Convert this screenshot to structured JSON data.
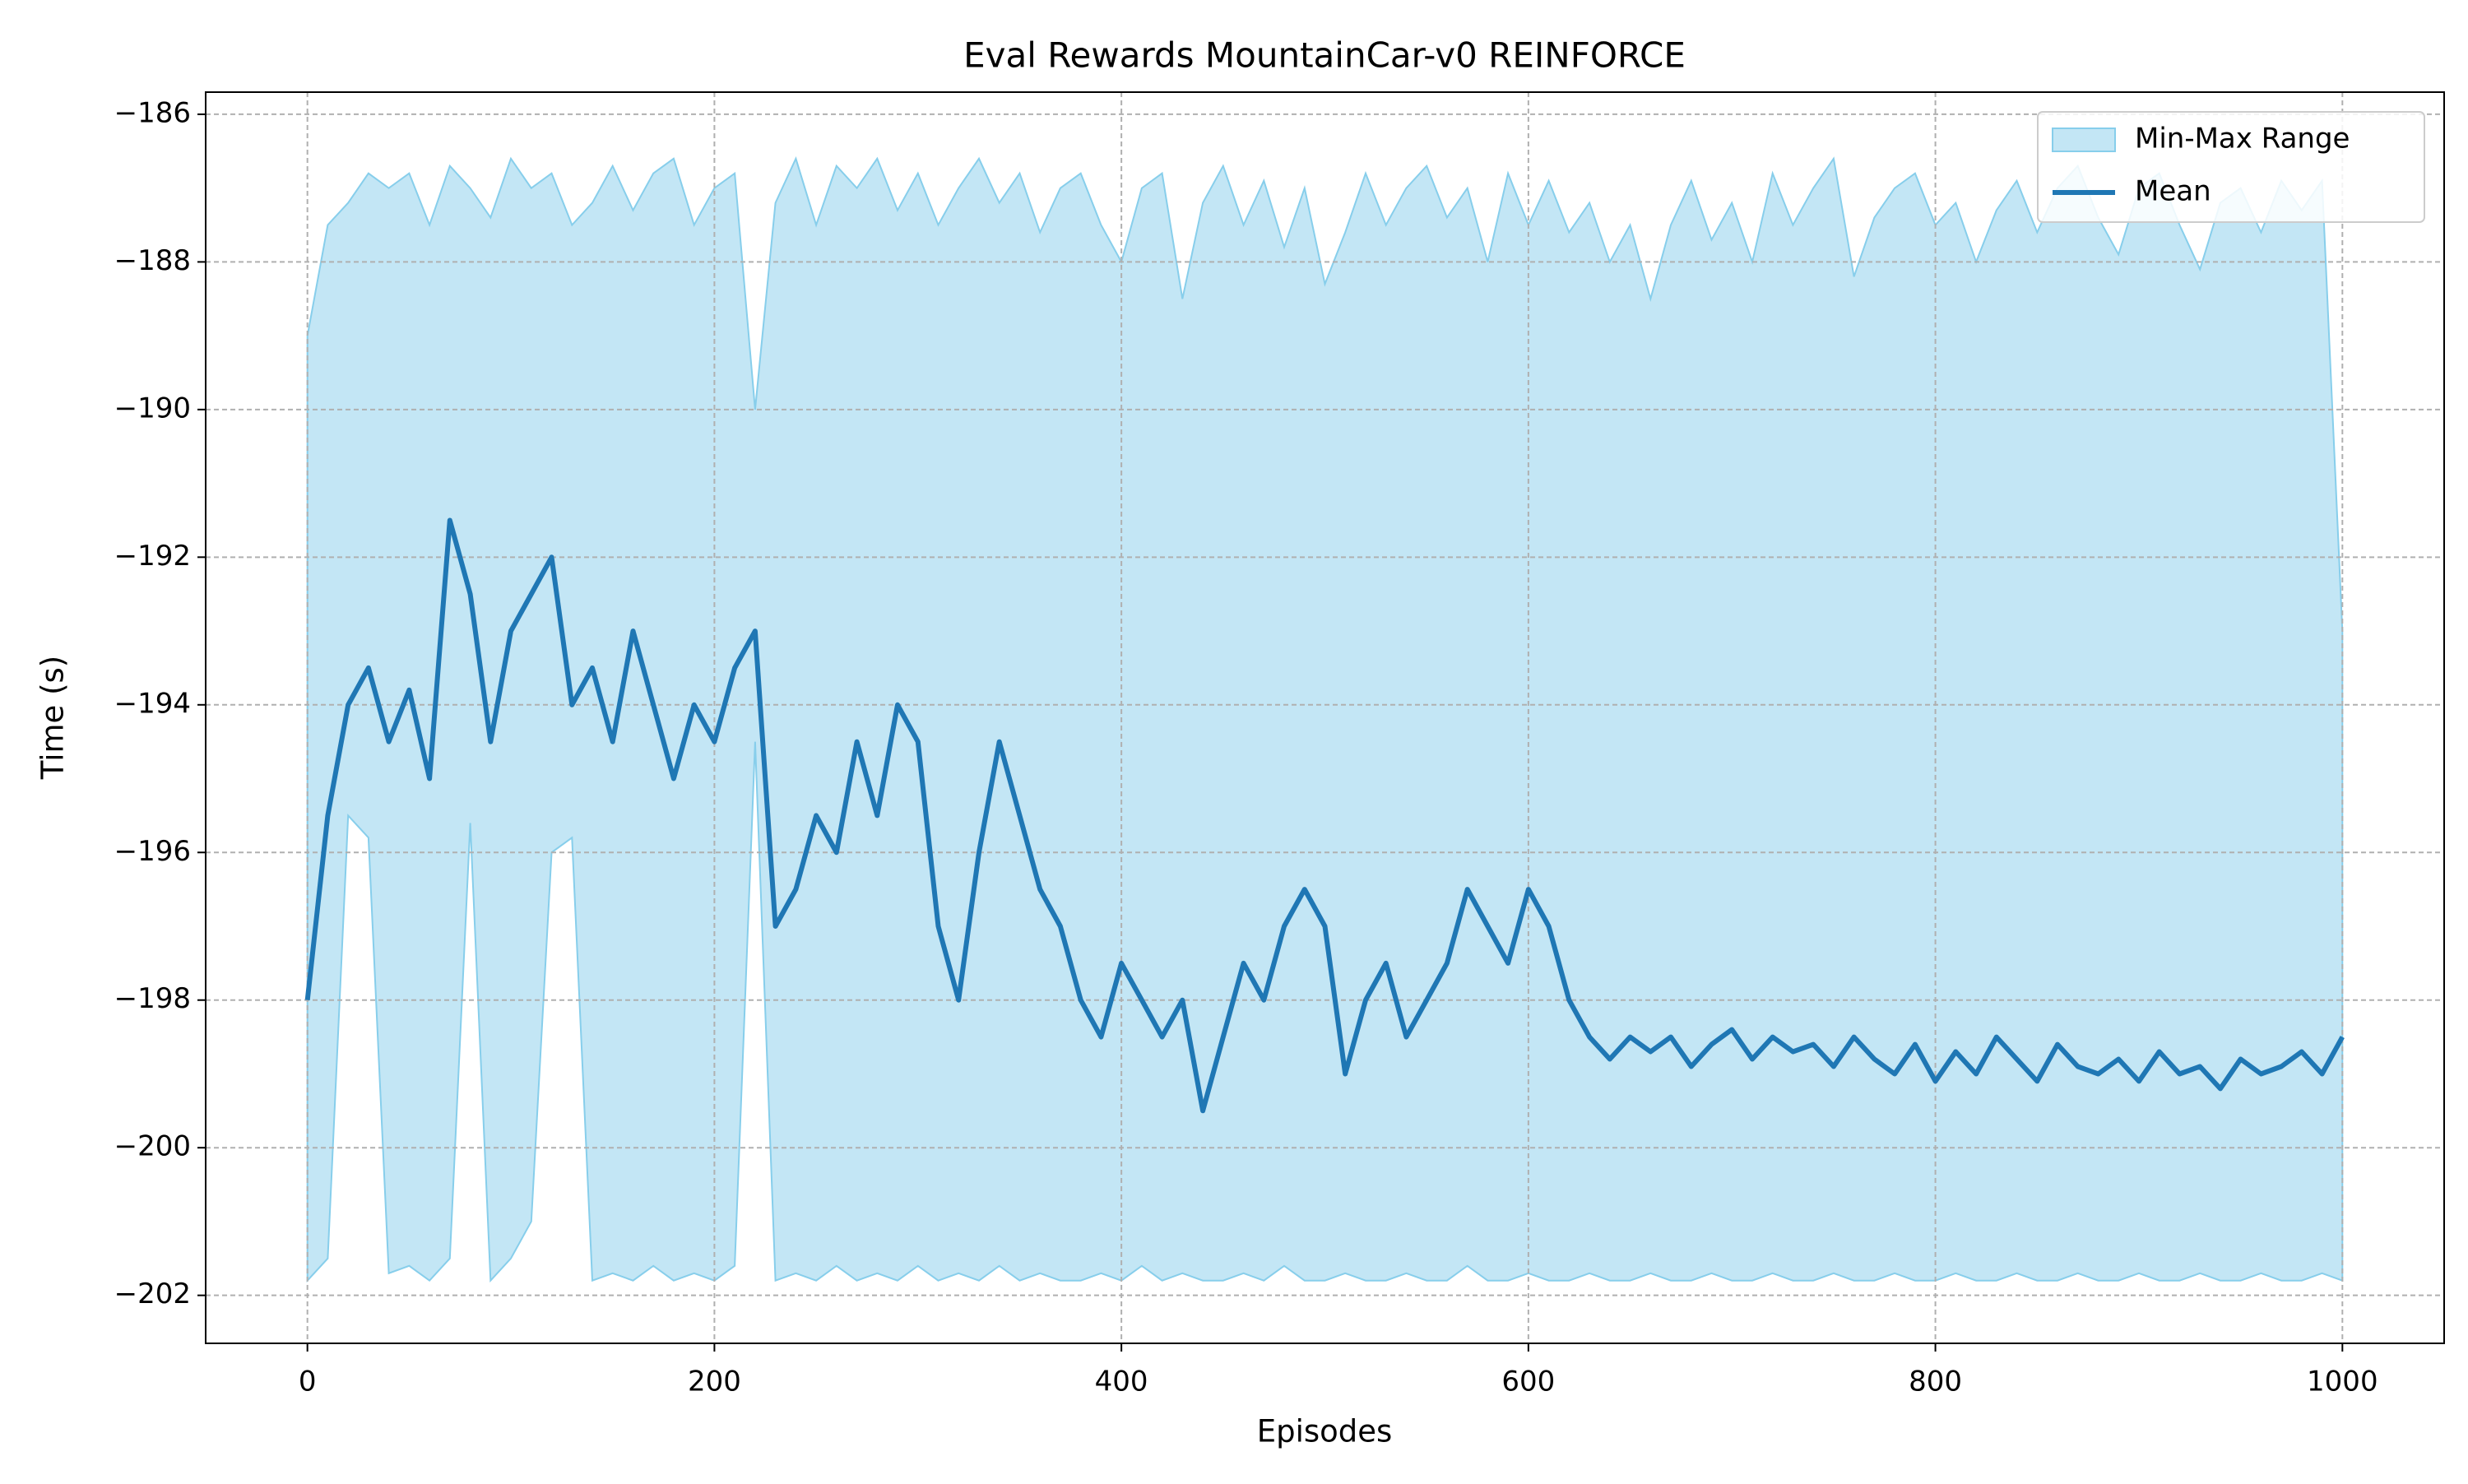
{
  "chart_data": {
    "type": "line",
    "title": "Eval Rewards MountainCar-v0 REINFORCE",
    "xlabel": "Episodes",
    "ylabel": "Time (s)",
    "x": [
      0,
      10,
      20,
      30,
      40,
      50,
      60,
      70,
      80,
      90,
      100,
      110,
      120,
      130,
      140,
      150,
      160,
      170,
      180,
      190,
      200,
      210,
      220,
      230,
      240,
      250,
      260,
      270,
      280,
      290,
      300,
      310,
      320,
      330,
      340,
      350,
      360,
      370,
      380,
      390,
      400,
      410,
      420,
      430,
      440,
      450,
      460,
      470,
      480,
      490,
      500,
      510,
      520,
      530,
      540,
      550,
      560,
      570,
      580,
      590,
      600,
      610,
      620,
      630,
      640,
      650,
      660,
      670,
      680,
      690,
      700,
      710,
      720,
      730,
      740,
      750,
      760,
      770,
      780,
      790,
      800,
      810,
      820,
      830,
      840,
      850,
      860,
      870,
      880,
      890,
      900,
      910,
      920,
      930,
      940,
      950,
      960,
      970,
      980,
      990,
      1000
    ],
    "series": [
      {
        "name": "Min-Max Range",
        "type": "area",
        "color": "#87ceeb",
        "upper": [
          -189,
          -187.5,
          -187.2,
          -186.8,
          -187,
          -186.8,
          -187.5,
          -186.7,
          -187,
          -187.4,
          -186.6,
          -187,
          -186.8,
          -187.5,
          -187.2,
          -186.7,
          -187.3,
          -186.8,
          -186.6,
          -187.5,
          -187,
          -186.8,
          -190,
          -187.2,
          -186.6,
          -187.5,
          -186.7,
          -187,
          -186.6,
          -187.3,
          -186.8,
          -187.5,
          -187,
          -186.6,
          -187.2,
          -186.8,
          -187.6,
          -187,
          -186.8,
          -187.5,
          -188,
          -187,
          -186.8,
          -188.5,
          -187.2,
          -186.7,
          -187.5,
          -186.9,
          -187.8,
          -187,
          -188.3,
          -187.6,
          -186.8,
          -187.5,
          -187,
          -186.7,
          -187.4,
          -187,
          -188,
          -186.8,
          -187.5,
          -186.9,
          -187.6,
          -187.2,
          -188,
          -187.5,
          -188.5,
          -187.5,
          -186.9,
          -187.7,
          -187.2,
          -188,
          -186.8,
          -187.5,
          -187,
          -186.6,
          -188.2,
          -187.4,
          -187,
          -186.8,
          -187.5,
          -187.2,
          -188,
          -187.3,
          -186.9,
          -187.6,
          -187,
          -186.7,
          -187.4,
          -187.9,
          -187,
          -186.8,
          -187.5,
          -188.1,
          -187.2,
          -187,
          -187.6,
          -186.9,
          -187.3,
          -186.9,
          -193
        ],
        "lower": [
          -201.8,
          -201.5,
          -195.5,
          -195.8,
          -201.7,
          -201.6,
          -201.8,
          -201.5,
          -195.6,
          -201.8,
          -201.5,
          -201,
          -196,
          -195.8,
          -201.8,
          -201.7,
          -201.8,
          -201.6,
          -201.8,
          -201.7,
          -201.8,
          -201.6,
          -194.5,
          -201.8,
          -201.7,
          -201.8,
          -201.6,
          -201.8,
          -201.7,
          -201.8,
          -201.6,
          -201.8,
          -201.7,
          -201.8,
          -201.6,
          -201.8,
          -201.7,
          -201.8,
          -201.8,
          -201.7,
          -201.8,
          -201.6,
          -201.8,
          -201.7,
          -201.8,
          -201.8,
          -201.7,
          -201.8,
          -201.6,
          -201.8,
          -201.8,
          -201.7,
          -201.8,
          -201.8,
          -201.7,
          -201.8,
          -201.8,
          -201.6,
          -201.8,
          -201.8,
          -201.7,
          -201.8,
          -201.8,
          -201.7,
          -201.8,
          -201.8,
          -201.7,
          -201.8,
          -201.8,
          -201.7,
          -201.8,
          -201.8,
          -201.7,
          -201.8,
          -201.8,
          -201.7,
          -201.8,
          -201.8,
          -201.7,
          -201.8,
          -201.8,
          -201.7,
          -201.8,
          -201.8,
          -201.7,
          -201.8,
          -201.8,
          -201.7,
          -201.8,
          -201.8,
          -201.7,
          -201.8,
          -201.8,
          -201.7,
          -201.8,
          -201.8,
          -201.7,
          -201.8,
          -201.8,
          -201.7,
          -201.8
        ]
      },
      {
        "name": "Mean",
        "color": "#1f77b4",
        "values": [
          -198,
          -195.5,
          -194,
          -193.5,
          -194.5,
          -193.8,
          -195,
          -191.5,
          -192.5,
          -194.5,
          -193,
          -192.5,
          -192,
          -194,
          -193.5,
          -194.5,
          -193,
          -194,
          -195,
          -194,
          -194.5,
          -193.5,
          -193,
          -197,
          -196.5,
          -195.5,
          -196,
          -194.5,
          -195.5,
          -194,
          -194.5,
          -197,
          -198,
          -196,
          -194.5,
          -195.5,
          -196.5,
          -197,
          -198,
          -198.5,
          -197.5,
          -198,
          -198.5,
          -198,
          -199.5,
          -198.5,
          -197.5,
          -198,
          -197,
          -196.5,
          -197,
          -199,
          -198,
          -197.5,
          -198.5,
          -198,
          -197.5,
          -196.5,
          -197,
          -197.5,
          -196.5,
          -197,
          -198,
          -198.5,
          -198.8,
          -198.5,
          -198.7,
          -198.5,
          -198.9,
          -198.6,
          -198.4,
          -198.8,
          -198.5,
          -198.7,
          -198.6,
          -198.9,
          -198.5,
          -198.8,
          -199,
          -198.6,
          -199.1,
          -198.7,
          -199,
          -198.5,
          -198.8,
          -199.1,
          -198.6,
          -198.9,
          -199,
          -198.8,
          -199.1,
          -198.7,
          -199,
          -198.9,
          -199.2,
          -198.8,
          -199,
          -198.9,
          -198.7,
          -199,
          -198.5
        ]
      }
    ],
    "xlim": [
      -50,
      1050
    ],
    "ylim": [
      -202.65,
      -185.7
    ],
    "xticks": [
      0,
      200,
      400,
      600,
      800,
      1000
    ],
    "yticks": [
      {
        "value": -202,
        "label": "−202"
      },
      {
        "value": -200,
        "label": "−200"
      },
      {
        "value": -198,
        "label": "−198"
      },
      {
        "value": -196,
        "label": "−196"
      },
      {
        "value": -194,
        "label": "−194"
      },
      {
        "value": -192,
        "label": "−192"
      },
      {
        "value": -190,
        "label": "−190"
      },
      {
        "value": -188,
        "label": "−188"
      },
      {
        "value": -186,
        "label": "−186"
      }
    ],
    "grid": true,
    "legend": "upper right"
  }
}
